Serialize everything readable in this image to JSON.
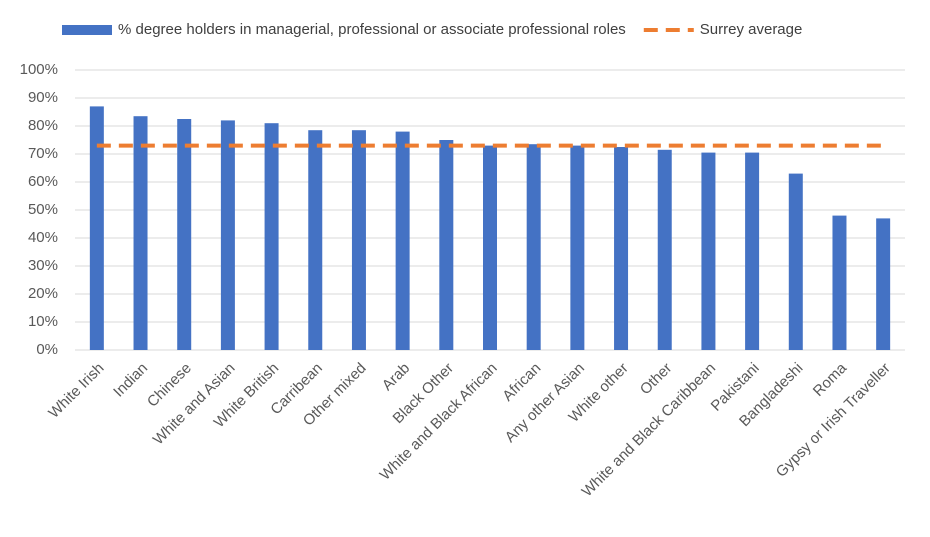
{
  "chart_data": {
    "type": "bar",
    "categories": [
      "White Irish",
      "Indian",
      "Chinese",
      "White and Asian",
      "White British",
      "Carribean",
      "Other mixed",
      "Arab",
      "Black Other",
      "White and Black African",
      "African",
      "Any other Asian",
      "White other",
      "Other",
      "White and Black Caribbean",
      "Pakistani",
      "Bangladeshi",
      "Roma",
      "Gypsy or Irish Traveller"
    ],
    "series": [
      {
        "name": "% degree holders in managerial, professional or associate professional roles",
        "type": "bar",
        "color": "#4472c4",
        "values": [
          87,
          83.5,
          82.5,
          82,
          81,
          78.5,
          78.5,
          78,
          75,
          73,
          73.5,
          73,
          72.5,
          71.5,
          70.5,
          70.5,
          63,
          48,
          47
        ]
      },
      {
        "name": "Surrey average",
        "type": "line",
        "color": "#ed7d31",
        "dashed": true,
        "values": [
          73,
          73,
          73,
          73,
          73,
          73,
          73,
          73,
          73,
          73,
          73,
          73,
          73,
          73,
          73,
          73,
          73,
          73,
          73
        ]
      }
    ],
    "ylim": [
      0,
      100
    ],
    "yticks": [
      {
        "value": 0,
        "label": "0%"
      },
      {
        "value": 10,
        "label": "10%"
      },
      {
        "value": 20,
        "label": "20%"
      },
      {
        "value": 30,
        "label": "30%"
      },
      {
        "value": 40,
        "label": "40%"
      },
      {
        "value": 50,
        "label": "50%"
      },
      {
        "value": 60,
        "label": "60%"
      },
      {
        "value": 70,
        "label": "70%"
      },
      {
        "value": 80,
        "label": "80%"
      },
      {
        "value": 90,
        "label": "90%"
      },
      {
        "value": 100,
        "label": "100%"
      }
    ],
    "grid": true
  }
}
